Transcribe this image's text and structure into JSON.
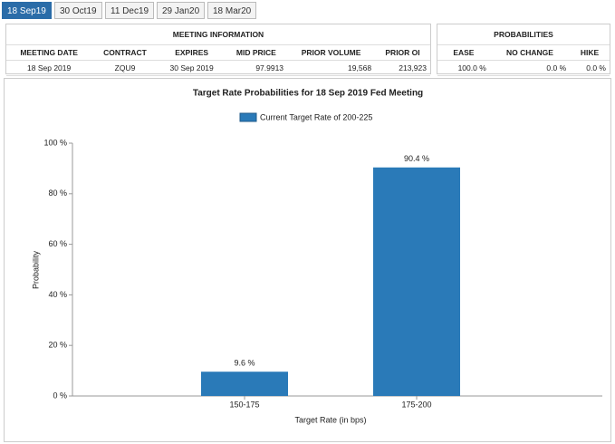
{
  "tabs": [
    "18 Sep19",
    "30 Oct19",
    "11 Dec19",
    "29 Jan20",
    "18 Mar20"
  ],
  "meeting_information": {
    "title": "MEETING INFORMATION",
    "headers": [
      "MEETING DATE",
      "CONTRACT",
      "EXPIRES",
      "MID PRICE",
      "PRIOR VOLUME",
      "PRIOR OI"
    ],
    "row": [
      "18 Sep 2019",
      "ZQU9",
      "30 Sep 2019",
      "97.9913",
      "19,568",
      "213,923"
    ]
  },
  "probabilities": {
    "title": "PROBABILITIES",
    "headers": [
      "EASE",
      "NO CHANGE",
      "HIKE"
    ],
    "row": [
      "100.0 %",
      "0.0 %",
      "0.0 %"
    ]
  },
  "chart_data": {
    "type": "bar",
    "title": "Target Rate Probabilities for 18 Sep 2019 Fed Meeting",
    "x_label": "Target Rate (in bps)",
    "y_label": "Probability",
    "categories": [
      "150-175",
      "175-200"
    ],
    "series": [
      {
        "name": "Current Target Rate of 200-225",
        "color": "#2a7ab8",
        "values": [
          9.6,
          90.4
        ],
        "value_labels": [
          "9.6 %",
          "90.4 %"
        ]
      }
    ],
    "ylim": [
      0,
      100
    ],
    "yticks": [
      {
        "value": 0,
        "label": "0 %"
      },
      {
        "value": 20,
        "label": "20 %"
      },
      {
        "value": 40,
        "label": "40 %"
      },
      {
        "value": 60,
        "label": "60 %"
      },
      {
        "value": 80,
        "label": "80 %"
      },
      {
        "value": 100,
        "label": "100 %"
      }
    ],
    "grid": false,
    "legend": "top"
  }
}
